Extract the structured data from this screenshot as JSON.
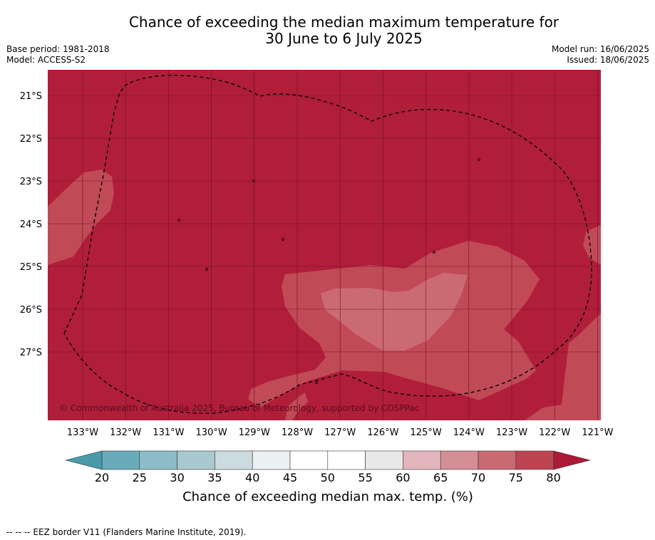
{
  "header": {
    "title_line1": "Chance of exceeding the median maximum temperature for",
    "title_line2": "30 June to 6 July 2025",
    "base_period": "Base period: 1981-2018",
    "model": "Model: ACCESS-S2",
    "model_run": "Model run: 16/06/2025",
    "issued": "Issued: 18/06/2025"
  },
  "map": {
    "lat_labels": [
      "21°S",
      "22°S",
      "23°S",
      "24°S",
      "25°S",
      "26°S",
      "27°S"
    ],
    "lon_labels": [
      "133°W",
      "132°W",
      "131°W",
      "130°W",
      "129°W",
      "128°W",
      "127°W",
      "126°W",
      "125°W",
      "124°W",
      "123°W",
      "122°W",
      "121°W"
    ],
    "copyright": "© Commonwealth of Australia 2025, Bureau of Meteorology, supported by COSPPac",
    "colors": {
      "above_80": "#b01e3a",
      "band_75_80": "#c14a57",
      "band_70_75": "#cb6a73",
      "gridline": "#6e1022",
      "eez_border": "#000000"
    }
  },
  "colorbar": {
    "ticks": [
      "20",
      "25",
      "30",
      "35",
      "40",
      "45",
      "50",
      "55",
      "60",
      "65",
      "70",
      "75",
      "80"
    ],
    "colors": [
      "#6aabbb",
      "#8cbcc7",
      "#aac9cf",
      "#cbdbdf",
      "#ebf0f2",
      "#ffffff",
      "#ffffff",
      "#e8e8e8",
      "#e2b6bc",
      "#d48f96",
      "#c96a73",
      "#be4452"
    ],
    "under_color": "#4a9aab",
    "over_color": "#ad1a38",
    "label": "Chance of exceeding median max. temp. (%)"
  },
  "footer": {
    "eez_note": "--  --  -- EEZ border V11 (Flanders Marine Institute, 2019)."
  }
}
